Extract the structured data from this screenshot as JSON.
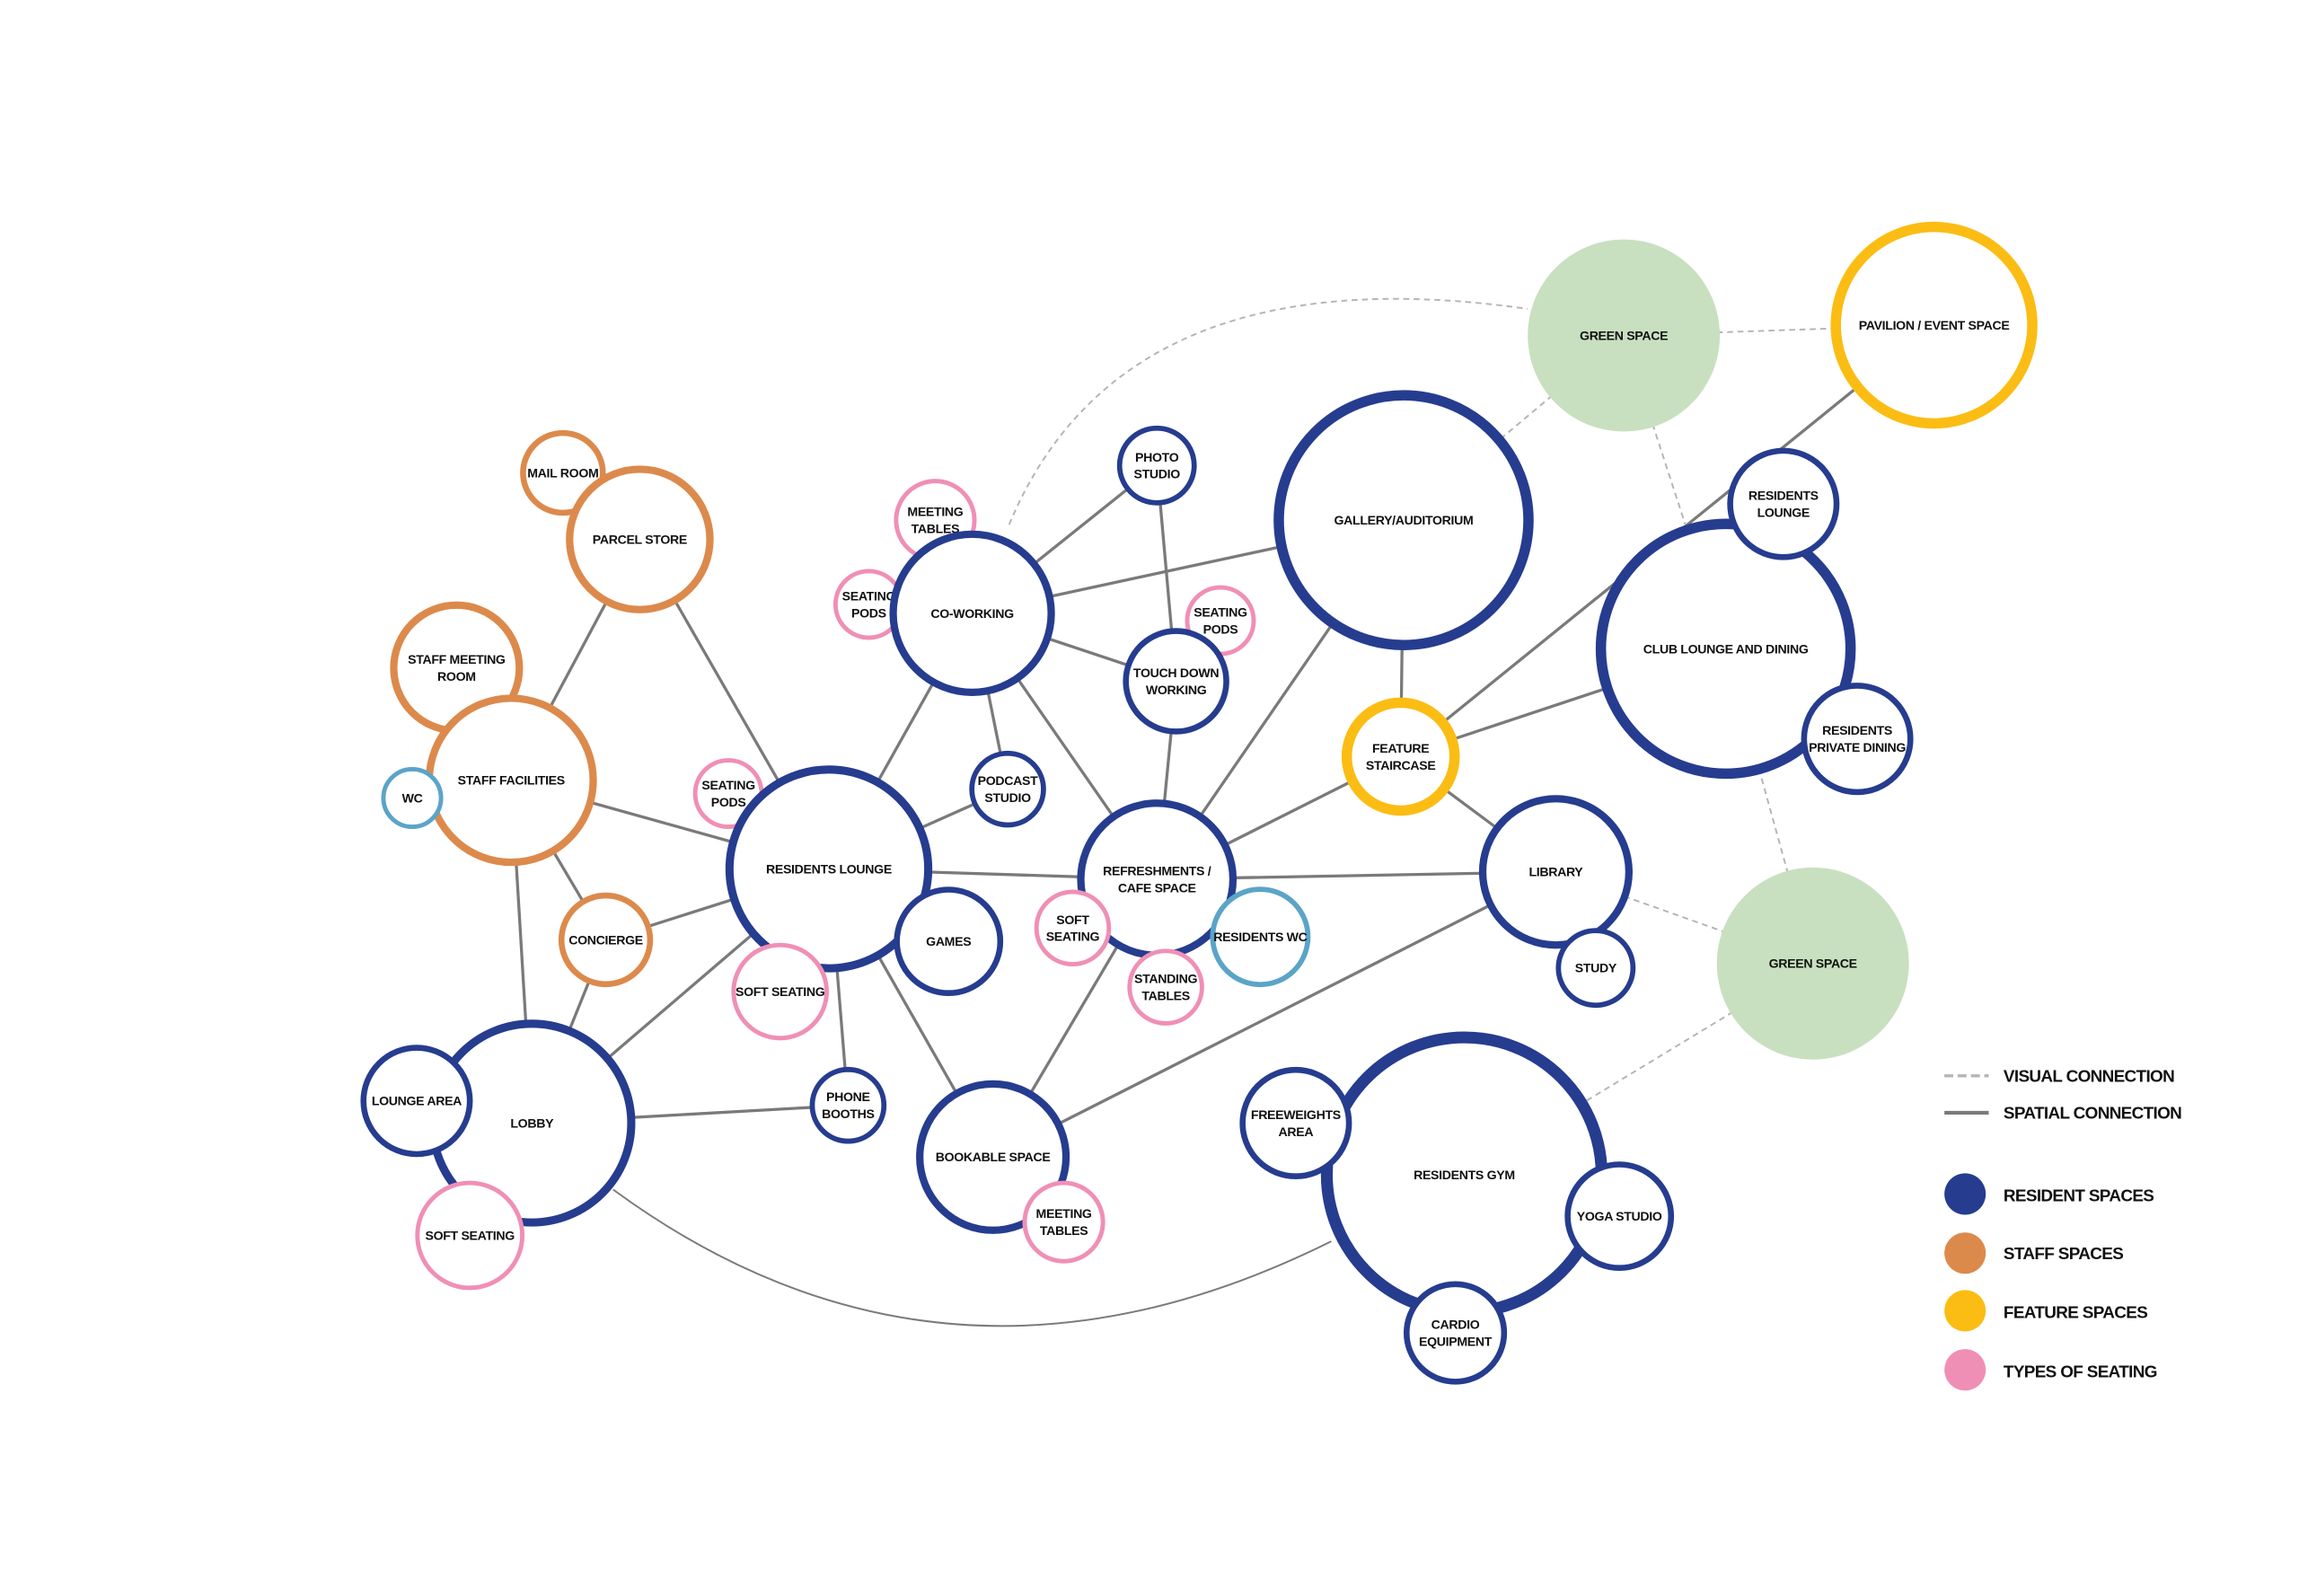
{
  "colors": {
    "resident": "#263c8f",
    "staff": "#dc8a4c",
    "feature": "#fbbd14",
    "seating": "#f08fb5",
    "wc": "#5ba4c8",
    "green": "#c8e0c0",
    "spatial_line": "#7a7a7a",
    "visual_line": "#b5b5b5"
  },
  "legend": {
    "lines": [
      {
        "style": "dashed",
        "label": "VISUAL CONNECTION"
      },
      {
        "style": "solid",
        "label": "SPATIAL CONNECTION"
      }
    ],
    "categories": [
      {
        "key": "resident",
        "label": "RESIDENT SPACES"
      },
      {
        "key": "staff",
        "label": "STAFF SPACES"
      },
      {
        "key": "feature",
        "label": "FEATURE SPACES"
      },
      {
        "key": "seating",
        "label": "TYPES OF SEATING"
      }
    ]
  },
  "nodes": [
    {
      "id": "green1",
      "category": "green",
      "lines": [
        "GREEN SPACE"
      ]
    },
    {
      "id": "pavilion",
      "category": "feature",
      "lines": [
        "PAVILION / EVENT SPACE"
      ]
    },
    {
      "id": "gallery",
      "category": "resident",
      "lines": [
        "GALLERY/AUDITORIUM"
      ]
    },
    {
      "id": "photo",
      "category": "resident",
      "lines": [
        "PHOTO",
        "STUDIO"
      ]
    },
    {
      "id": "meet1",
      "category": "seating",
      "lines": [
        "MEETING",
        "TABLES"
      ]
    },
    {
      "id": "seat1",
      "category": "seating",
      "lines": [
        "SEATING",
        "PODS"
      ]
    },
    {
      "id": "cowork",
      "category": "resident",
      "lines": [
        "CO-WORKING"
      ]
    },
    {
      "id": "seat2",
      "category": "seating",
      "lines": [
        "SEATING",
        "PODS"
      ]
    },
    {
      "id": "touch",
      "category": "resident",
      "lines": [
        "TOUCH DOWN",
        "WORKING"
      ]
    },
    {
      "id": "mail",
      "category": "staff",
      "lines": [
        "MAIL ROOM"
      ]
    },
    {
      "id": "parcel",
      "category": "staff",
      "lines": [
        "PARCEL STORE"
      ]
    },
    {
      "id": "staffmeet",
      "category": "staff",
      "lines": [
        "STAFF MEETING",
        "ROOM"
      ]
    },
    {
      "id": "stafffac",
      "category": "staff",
      "lines": [
        "STAFF FACILITIES"
      ]
    },
    {
      "id": "wc",
      "category": "wc",
      "lines": [
        "WC"
      ]
    },
    {
      "id": "seat3",
      "category": "seating",
      "lines": [
        "SEATING",
        "PODS"
      ]
    },
    {
      "id": "reslounge",
      "category": "resident",
      "lines": [
        "RESIDENTS LOUNGE"
      ]
    },
    {
      "id": "podcast",
      "category": "resident",
      "lines": [
        "PODCAST",
        "STUDIO"
      ]
    },
    {
      "id": "refresh",
      "category": "resident",
      "lines": [
        "REFRESHMENTS /",
        "CAFE SPACE"
      ]
    },
    {
      "id": "feature",
      "category": "feature",
      "lines": [
        "FEATURE",
        "STAIRCASE"
      ]
    },
    {
      "id": "club",
      "category": "resident",
      "lines": [
        "CLUB LOUNGE AND DINING"
      ]
    },
    {
      "id": "resl2",
      "category": "resident",
      "lines": [
        "RESIDENTS",
        "LOUNGE"
      ]
    },
    {
      "id": "resdine",
      "category": "resident",
      "lines": [
        "RESIDENTS",
        "PRIVATE DINING"
      ]
    },
    {
      "id": "library",
      "category": "resident",
      "lines": [
        "LIBRARY"
      ]
    },
    {
      "id": "study",
      "category": "resident",
      "lines": [
        "STUDY"
      ]
    },
    {
      "id": "green2",
      "category": "green",
      "lines": [
        "GREEN SPACE"
      ]
    },
    {
      "id": "concierge",
      "category": "staff",
      "lines": [
        "CONCIERGE"
      ]
    },
    {
      "id": "games",
      "category": "resident",
      "lines": [
        "GAMES"
      ]
    },
    {
      "id": "softseat1",
      "category": "seating",
      "lines": [
        "SOFT SEATING"
      ]
    },
    {
      "id": "softseat2",
      "category": "seating",
      "lines": [
        "SOFT",
        "SEATING"
      ]
    },
    {
      "id": "reswc",
      "category": "wc",
      "lines": [
        "RESIDENTS WC"
      ]
    },
    {
      "id": "standing",
      "category": "seating",
      "lines": [
        "STANDING",
        "TABLES"
      ]
    },
    {
      "id": "lobby",
      "category": "resident",
      "lines": [
        "LOBBY"
      ]
    },
    {
      "id": "loungearea",
      "category": "resident",
      "lines": [
        "LOUNGE AREA"
      ]
    },
    {
      "id": "softseat3",
      "category": "seating",
      "lines": [
        "SOFT SEATING"
      ]
    },
    {
      "id": "phone",
      "category": "resident",
      "lines": [
        "PHONE",
        "BOOTHS"
      ]
    },
    {
      "id": "bookable",
      "category": "resident",
      "lines": [
        "BOOKABLE SPACE"
      ]
    },
    {
      "id": "meet2",
      "category": "seating",
      "lines": [
        "MEETING",
        "TABLES"
      ]
    },
    {
      "id": "gym",
      "category": "resident",
      "lines": [
        "RESIDENTS GYM"
      ]
    },
    {
      "id": "freew",
      "category": "resident",
      "lines": [
        "FREEWEIGHTS",
        "AREA"
      ]
    },
    {
      "id": "yoga",
      "category": "resident",
      "lines": [
        "YOGA STUDIO"
      ]
    },
    {
      "id": "cardio",
      "category": "resident",
      "lines": [
        "CARDIO",
        "EQUIPMENT"
      ]
    }
  ],
  "edges": [
    {
      "from": "parcel",
      "to": "stafffac",
      "type": "spatial"
    },
    {
      "from": "parcel",
      "to": "reslounge",
      "type": "spatial"
    },
    {
      "from": "stafffac",
      "to": "reslounge",
      "type": "spatial"
    },
    {
      "from": "stafffac",
      "to": "lobby",
      "type": "spatial"
    },
    {
      "from": "stafffac",
      "to": "concierge",
      "type": "spatial"
    },
    {
      "from": "concierge",
      "to": "reslounge",
      "type": "spatial"
    },
    {
      "from": "concierge",
      "to": "lobby",
      "type": "spatial"
    },
    {
      "from": "lobby",
      "to": "reslounge",
      "type": "spatial"
    },
    {
      "from": "lobby",
      "to": "phone",
      "type": "spatial"
    },
    {
      "from": "reslounge",
      "to": "cowork",
      "type": "spatial"
    },
    {
      "from": "reslounge",
      "to": "refresh",
      "type": "spatial"
    },
    {
      "from": "reslounge",
      "to": "podcast",
      "type": "spatial"
    },
    {
      "from": "reslounge",
      "to": "phone",
      "type": "spatial"
    },
    {
      "from": "reslounge",
      "to": "bookable",
      "type": "spatial"
    },
    {
      "from": "cowork",
      "to": "photo",
      "type": "spatial"
    },
    {
      "from": "cowork",
      "to": "gallery",
      "type": "spatial"
    },
    {
      "from": "cowork",
      "to": "touch",
      "type": "spatial"
    },
    {
      "from": "cowork",
      "to": "podcast",
      "type": "spatial"
    },
    {
      "from": "cowork",
      "to": "refresh",
      "type": "spatial"
    },
    {
      "from": "photo",
      "to": "touch",
      "type": "spatial"
    },
    {
      "from": "touch",
      "to": "refresh",
      "type": "spatial"
    },
    {
      "from": "gallery",
      "to": "refresh",
      "type": "spatial"
    },
    {
      "from": "gallery",
      "to": "feature",
      "type": "spatial"
    },
    {
      "from": "feature",
      "to": "refresh",
      "type": "spatial"
    },
    {
      "from": "feature",
      "to": "club",
      "type": "spatial"
    },
    {
      "from": "feature",
      "to": "pavilion",
      "type": "spatial"
    },
    {
      "from": "feature",
      "to": "library",
      "type": "spatial"
    },
    {
      "from": "refresh",
      "to": "library",
      "type": "spatial"
    },
    {
      "from": "refresh",
      "to": "bookable",
      "type": "spatial"
    },
    {
      "from": "library",
      "to": "bookable",
      "type": "spatial"
    },
    {
      "from": "lobby",
      "to": "gym",
      "type": "spatial"
    },
    {
      "from": "cowork",
      "to": "green1",
      "type": "visual"
    },
    {
      "from": "green1",
      "to": "pavilion",
      "type": "visual"
    },
    {
      "from": "green1",
      "to": "gallery",
      "type": "visual"
    },
    {
      "from": "green1",
      "to": "club",
      "type": "visual"
    },
    {
      "from": "club",
      "to": "green2",
      "type": "visual"
    },
    {
      "from": "library",
      "to": "green2",
      "type": "visual"
    },
    {
      "from": "green2",
      "to": "gym",
      "type": "visual"
    }
  ]
}
